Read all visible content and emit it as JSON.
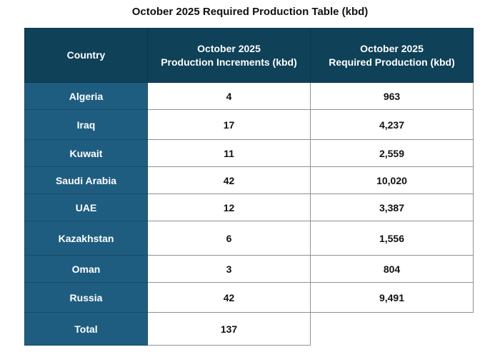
{
  "title": "October 2025 Required Production Table (kbd)",
  "colors": {
    "header_bg": "#0f4158",
    "country_bg": "#1f5d80",
    "text_light": "#ffffff",
    "text_dark": "#111111"
  },
  "chart_data": {
    "type": "table",
    "title": "October 2025 Required Production Table (kbd)",
    "columns": [
      "Country",
      "October 2025 Production Increments (kbd)",
      "October 2025 Required Production (kbd)"
    ],
    "header_lines": [
      [
        "Country"
      ],
      [
        "October 2025",
        "Production Increments (kbd)"
      ],
      [
        "October 2025",
        "Required Production (kbd)"
      ]
    ],
    "rows": [
      {
        "country": "Algeria",
        "increment": "4",
        "required": "963"
      },
      {
        "country": "Iraq",
        "increment": "17",
        "required": "4,237"
      },
      {
        "country": "Kuwait",
        "increment": "11",
        "required": "2,559"
      },
      {
        "country": "Saudi Arabia",
        "increment": "42",
        "required": "10,020"
      },
      {
        "country": "UAE",
        "increment": "12",
        "required": "3,387"
      },
      {
        "country": "Kazakhstan",
        "increment": "6",
        "required": "1,556"
      },
      {
        "country": "Oman",
        "increment": "3",
        "required": "804"
      },
      {
        "country": "Russia",
        "increment": "42",
        "required": "9,491"
      }
    ],
    "total": {
      "label": "Total",
      "increment": "137",
      "required": ""
    }
  }
}
